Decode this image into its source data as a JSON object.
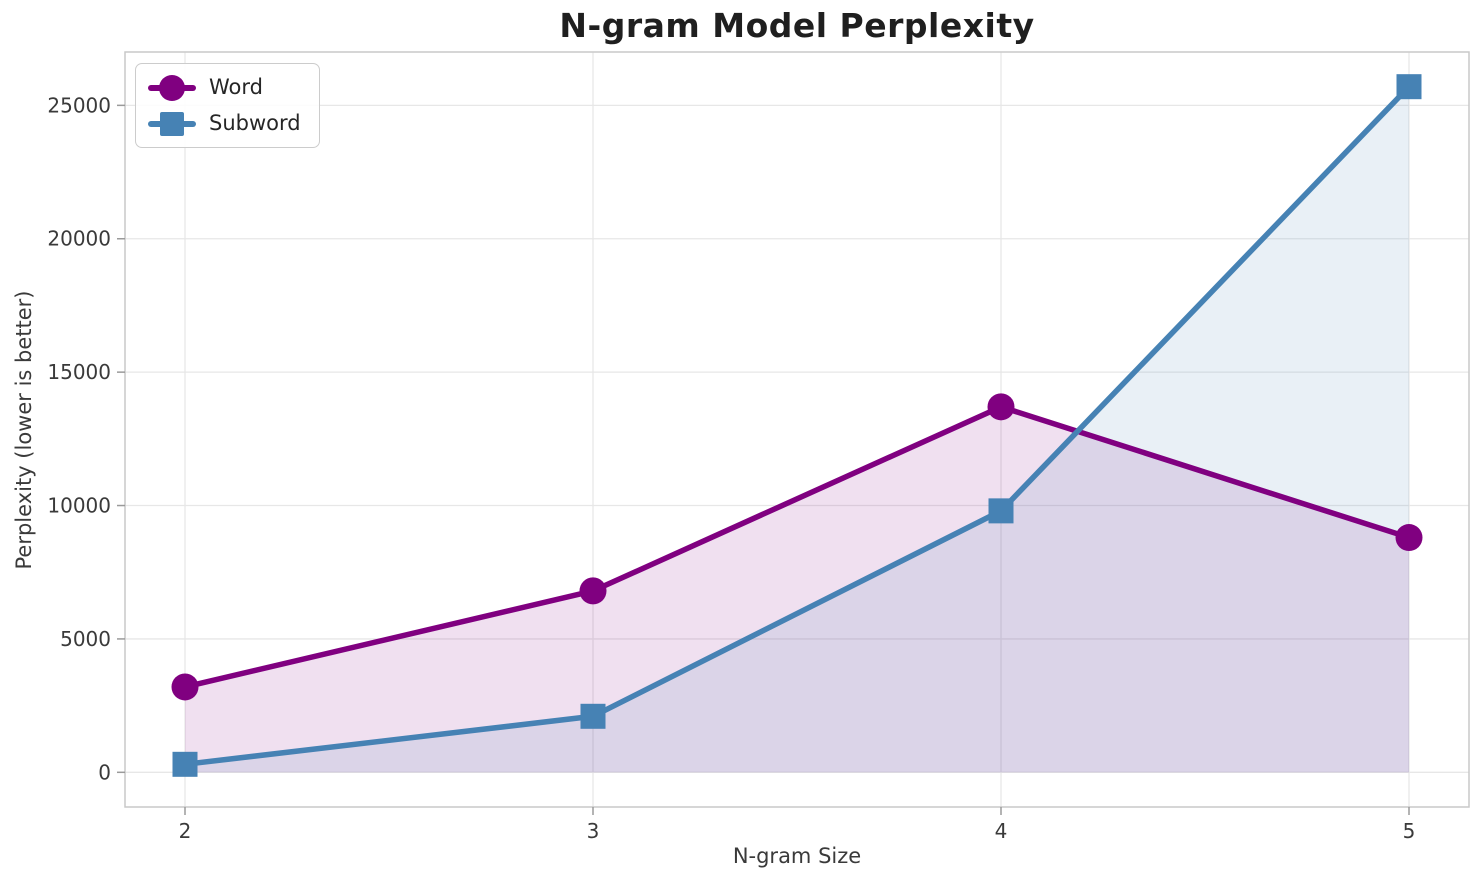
{
  "chart_data": {
    "type": "line",
    "title": "N-gram Model Perplexity",
    "xlabel": "N-gram Size",
    "ylabel": "Perplexity (lower is better)",
    "x": [
      2,
      3,
      4,
      5
    ],
    "xtick_labels": [
      "2",
      "3",
      "4",
      "5"
    ],
    "yticks": [
      0,
      5000,
      10000,
      15000,
      20000,
      25000
    ],
    "ytick_labels": [
      "0",
      "5000",
      "10000",
      "15000",
      "20000",
      "25000"
    ],
    "ylim": [
      -1300,
      27000
    ],
    "grid": true,
    "legend_position": "upper left",
    "fill_to_zero": true,
    "fill_alpha": 0.12,
    "series": [
      {
        "name": "Word",
        "color": "#800080",
        "marker": "circle",
        "values": [
          3200,
          6800,
          13700,
          8800
        ]
      },
      {
        "name": "Subword",
        "color": "#4682B4",
        "marker": "square",
        "values": [
          300,
          2100,
          9800,
          25700
        ]
      }
    ],
    "style": {
      "grid_color": "#e7e7e7",
      "spine_color": "#c9c9c9",
      "tick_color": "#9a9a9a",
      "tick_label_color": "#3a3a3a",
      "line_width": 5.5
    }
  }
}
